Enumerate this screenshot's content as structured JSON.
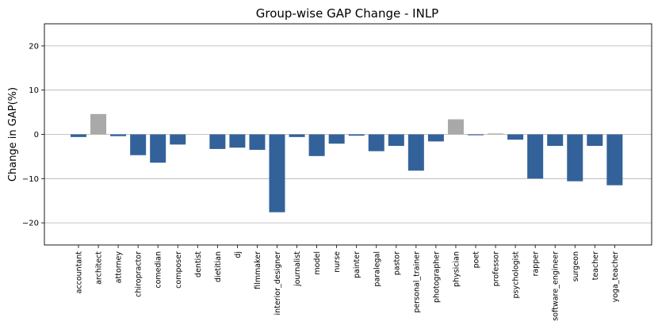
{
  "chart_data": {
    "type": "bar",
    "title": "Group-wise GAP Change - INLP",
    "xlabel": "",
    "ylabel": "Change in GAP(%)",
    "ylim": [
      -25,
      25
    ],
    "yticks": [
      -20,
      -10,
      0,
      10,
      20
    ],
    "ytick_labels": [
      "−20",
      "−10",
      "0",
      "10",
      "20"
    ],
    "grid": true,
    "colors": {
      "negative": "#33629a",
      "positive": "#a9a9a9"
    },
    "categories": [
      "accountant",
      "architect",
      "attorney",
      "chiropractor",
      "comedian",
      "composer",
      "dentist",
      "dietitian",
      "dj",
      "filmmaker",
      "interior_designer",
      "journalist",
      "model",
      "nurse",
      "painter",
      "paralegal",
      "pastor",
      "personal_trainer",
      "photographer",
      "physician",
      "poet",
      "professor",
      "psychologist",
      "rapper",
      "software_engineer",
      "surgeon",
      "teacher",
      "yoga_teacher"
    ],
    "values": [
      -0.6,
      4.6,
      -0.4,
      -4.7,
      -6.4,
      -2.3,
      0.0,
      -3.3,
      -3.0,
      -3.5,
      -17.6,
      -0.6,
      -4.9,
      -2.1,
      -0.3,
      -3.8,
      -2.6,
      -8.2,
      -1.6,
      3.4,
      -0.2,
      0.2,
      -1.2,
      -10.0,
      -2.6,
      -10.6,
      -2.6,
      -11.5
    ]
  }
}
